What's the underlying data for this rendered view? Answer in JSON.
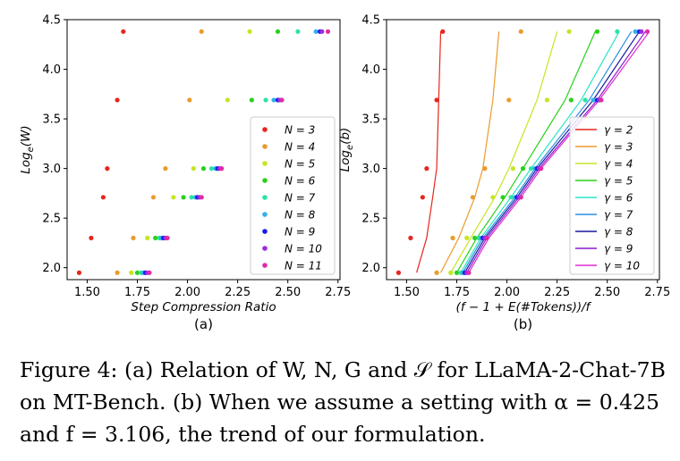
{
  "chart_data": [
    {
      "type": "scatter",
      "panel_label": "(a)",
      "xlabel": "Step Compression Ratio",
      "ylabel": "Log_e(W)",
      "xlim": [
        1.4,
        2.76
      ],
      "ylim": [
        1.88,
        4.5
      ],
      "xticks": [
        "1.50",
        "1.75",
        "2.00",
        "2.25",
        "2.50",
        "2.75"
      ],
      "yticks": [
        "2.0",
        "2.5",
        "3.0",
        "3.5",
        "4.0",
        "4.5"
      ],
      "legend_position": "lower right",
      "grid": false,
      "y_levels": [
        1.95,
        2.3,
        2.71,
        3.0,
        3.69,
        4.38
      ],
      "series": [
        {
          "name": "N = 3",
          "color": "#e6261f",
          "x": [
            1.46,
            1.52,
            1.58,
            1.6,
            1.65,
            1.68
          ]
        },
        {
          "name": "N = 4",
          "color": "#eb9b2b",
          "x": [
            1.65,
            1.73,
            1.83,
            1.89,
            2.01,
            2.07
          ]
        },
        {
          "name": "N = 5",
          "color": "#c4e623",
          "x": [
            1.72,
            1.8,
            1.93,
            2.03,
            2.2,
            2.31
          ]
        },
        {
          "name": "N = 6",
          "color": "#29d11a",
          "x": [
            1.75,
            1.84,
            1.98,
            2.08,
            2.32,
            2.45
          ]
        },
        {
          "name": "N = 7",
          "color": "#2be3a6",
          "x": [
            1.77,
            1.86,
            2.02,
            2.12,
            2.39,
            2.55
          ]
        },
        {
          "name": "N = 8",
          "color": "#33b0e8",
          "x": [
            1.78,
            1.87,
            2.04,
            2.14,
            2.43,
            2.64
          ]
        },
        {
          "name": "N = 9",
          "color": "#1a1aeb",
          "x": [
            1.79,
            1.88,
            2.05,
            2.15,
            2.45,
            2.66
          ]
        },
        {
          "name": "N = 10",
          "color": "#9b2be0",
          "x": [
            1.8,
            1.89,
            2.06,
            2.16,
            2.46,
            2.67
          ]
        },
        {
          "name": "N = 11",
          "color": "#e02ba5",
          "x": [
            1.81,
            1.9,
            2.07,
            2.17,
            2.47,
            2.7
          ]
        }
      ]
    },
    {
      "type": "line",
      "panel_label": "(b)",
      "xlabel": "(f − 1 + E(#Tokens))/f",
      "ylabel": "Log_e(b)",
      "xlim": [
        1.4,
        2.76
      ],
      "ylim": [
        1.88,
        4.5
      ],
      "xticks": [
        "1.50",
        "1.75",
        "2.00",
        "2.25",
        "2.50",
        "2.75"
      ],
      "yticks": [
        "2.0",
        "2.5",
        "3.0",
        "3.5",
        "4.0",
        "4.5"
      ],
      "legend_position": "lower right",
      "grid": false,
      "series": [
        {
          "name": "γ = 2",
          "color": "#e6261f",
          "x": [
            1.55,
            1.6,
            1.63,
            1.65,
            1.66,
            1.67
          ],
          "y": [
            1.95,
            2.3,
            2.71,
            3.0,
            3.69,
            4.38
          ]
        },
        {
          "name": "γ = 3",
          "color": "#eb9b2b",
          "x": [
            1.67,
            1.76,
            1.84,
            1.88,
            1.93,
            1.96
          ],
          "y": [
            1.95,
            2.3,
            2.71,
            3.0,
            3.69,
            4.38
          ]
        },
        {
          "name": "γ = 4",
          "color": "#c4e623",
          "x": [
            1.72,
            1.82,
            1.94,
            2.01,
            2.15,
            2.25
          ],
          "y": [
            1.95,
            2.3,
            2.71,
            3.0,
            3.69,
            4.38
          ]
        },
        {
          "name": "γ = 5",
          "color": "#29d11a",
          "x": [
            1.75,
            1.85,
            1.99,
            2.08,
            2.29,
            2.44
          ],
          "y": [
            1.95,
            2.3,
            2.71,
            3.0,
            3.69,
            4.38
          ]
        },
        {
          "name": "γ = 6",
          "color": "#2be3c6",
          "x": [
            1.77,
            1.87,
            2.02,
            2.12,
            2.37,
            2.56
          ],
          "y": [
            1.95,
            2.3,
            2.71,
            3.0,
            3.69,
            4.38
          ]
        },
        {
          "name": "γ = 7",
          "color": "#2b8fe0",
          "x": [
            1.78,
            1.88,
            2.04,
            2.14,
            2.41,
            2.62
          ],
          "y": [
            1.95,
            2.3,
            2.71,
            3.0,
            3.69,
            4.38
          ]
        },
        {
          "name": "γ = 8",
          "color": "#1a1a9b",
          "x": [
            1.79,
            1.89,
            2.05,
            2.15,
            2.43,
            2.66
          ],
          "y": [
            1.95,
            2.3,
            2.71,
            3.0,
            3.69,
            4.38
          ]
        },
        {
          "name": "γ = 9",
          "color": "#8a1ad1",
          "x": [
            1.8,
            1.9,
            2.06,
            2.16,
            2.45,
            2.69
          ],
          "y": [
            1.95,
            2.3,
            2.71,
            3.0,
            3.69,
            4.38
          ]
        },
        {
          "name": "γ = 10",
          "color": "#e02bd1",
          "x": [
            1.81,
            1.91,
            2.07,
            2.17,
            2.46,
            2.71
          ],
          "y": [
            1.95,
            2.3,
            2.71,
            3.0,
            3.69,
            4.38
          ]
        }
      ],
      "scatter_overlay": "same points as panel (a)"
    }
  ],
  "caption": {
    "text": "Figure 4: (a) Relation of W, N, G and 𝒮 for LLaMA-2-Chat-7B on MT-Bench. (b) When we assume a setting with α = 0.425 and f = 3.106, the trend of our formulation."
  }
}
